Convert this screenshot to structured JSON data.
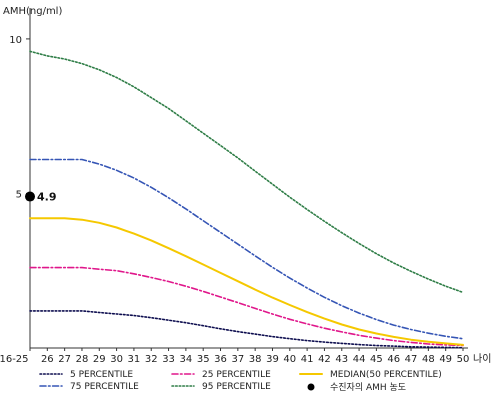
{
  "chart_data": {
    "type": "line",
    "ylabel": "AMH(ng/ml)",
    "xlabel_unit": "나이",
    "ylim": [
      0,
      11
    ],
    "yticks": [
      5,
      10
    ],
    "categories": [
      "16-25",
      "26",
      "27",
      "28",
      "29",
      "30",
      "31",
      "32",
      "33",
      "34",
      "35",
      "36",
      "37",
      "38",
      "39",
      "40",
      "41",
      "42",
      "43",
      "44",
      "45",
      "46",
      "47",
      "48",
      "49",
      "50"
    ],
    "series": [
      {
        "name": "5 PERCENTILE",
        "color": "#0d0d4f",
        "dash": "dot",
        "values": [
          1.2,
          1.2,
          1.2,
          1.2,
          1.15,
          1.1,
          1.05,
          0.98,
          0.9,
          0.82,
          0.72,
          0.62,
          0.53,
          0.45,
          0.37,
          0.3,
          0.24,
          0.19,
          0.15,
          0.11,
          0.08,
          0.06,
          0.04,
          0.03,
          0.02,
          0.01
        ]
      },
      {
        "name": "25 PERCENTILE",
        "color": "#e0178b",
        "dash": "dashdot",
        "values": [
          2.6,
          2.6,
          2.6,
          2.6,
          2.55,
          2.5,
          2.4,
          2.28,
          2.15,
          2.0,
          1.83,
          1.65,
          1.47,
          1.28,
          1.1,
          0.93,
          0.78,
          0.64,
          0.52,
          0.41,
          0.32,
          0.24,
          0.18,
          0.13,
          0.1,
          0.08
        ]
      },
      {
        "name": "MEDIAN(50 PERCENTILE)",
        "color": "#f5c800",
        "dash": "solid",
        "values": [
          4.2,
          4.2,
          4.2,
          4.15,
          4.05,
          3.9,
          3.7,
          3.48,
          3.23,
          2.97,
          2.7,
          2.43,
          2.16,
          1.89,
          1.63,
          1.39,
          1.16,
          0.95,
          0.76,
          0.6,
          0.47,
          0.36,
          0.27,
          0.2,
          0.15,
          0.1
        ]
      },
      {
        "name": "75 PERCENTILE",
        "color": "#3555b5",
        "dash": "dashdot",
        "values": [
          6.1,
          6.1,
          6.1,
          6.1,
          5.95,
          5.75,
          5.5,
          5.2,
          4.86,
          4.5,
          4.12,
          3.74,
          3.36,
          2.98,
          2.61,
          2.26,
          1.94,
          1.64,
          1.37,
          1.13,
          0.92,
          0.74,
          0.6,
          0.48,
          0.38,
          0.3
        ]
      },
      {
        "name": "95 PERCENTILE",
        "color": "#2e7d46",
        "dash": "dot",
        "values": [
          9.6,
          9.45,
          9.35,
          9.2,
          9.0,
          8.75,
          8.45,
          8.1,
          7.75,
          7.35,
          6.95,
          6.55,
          6.15,
          5.72,
          5.3,
          4.88,
          4.48,
          4.1,
          3.73,
          3.38,
          3.05,
          2.75,
          2.48,
          2.23,
          2.0,
          1.8
        ]
      }
    ],
    "marker": {
      "name": "수진자의 AMH 농도",
      "x": "16-25",
      "y": 4.9,
      "label": "4.9",
      "color": "#000000"
    }
  }
}
